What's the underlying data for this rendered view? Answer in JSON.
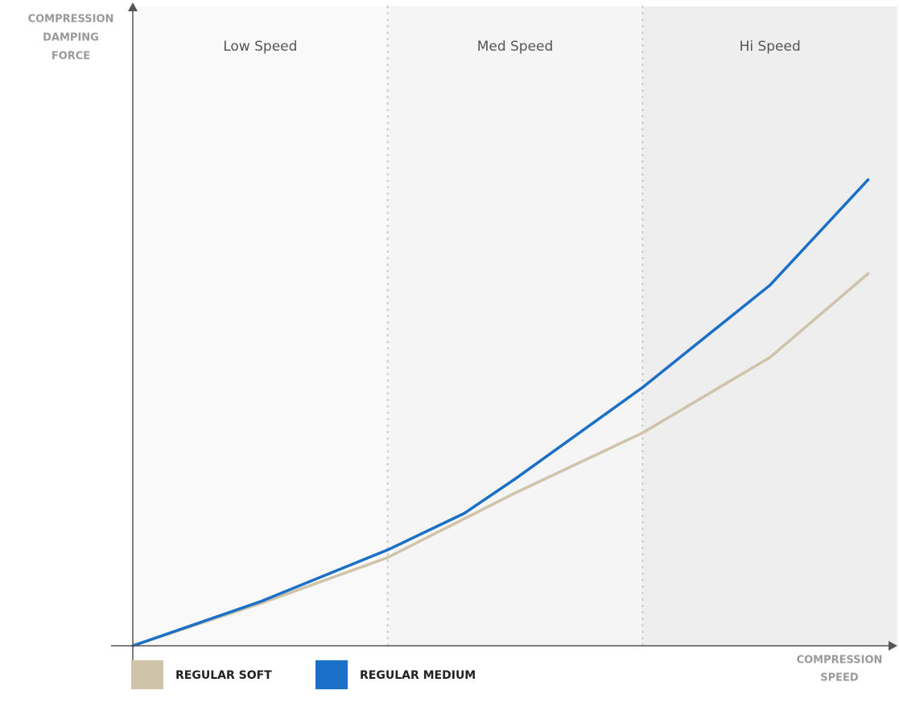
{
  "chart_data": {
    "type": "line",
    "ylabel": [
      "COMPRESSION",
      "DAMPING",
      "FORCE"
    ],
    "xlabel": [
      "COMPRESSION",
      "SPEED"
    ],
    "xlim": [
      0,
      3
    ],
    "ylim": [
      0,
      10
    ],
    "zones": [
      {
        "label": "Low Speed",
        "range": [
          0,
          1
        ],
        "color": "#f9f9f9"
      },
      {
        "label": "Med Speed",
        "range": [
          1,
          2
        ],
        "color": "#f5f5f5"
      },
      {
        "label": "Hi Speed",
        "range": [
          2,
          3
        ],
        "color": "#eeeeee"
      }
    ],
    "series": [
      {
        "name": "REGULAR SOFT",
        "color": "#cfc3aa",
        "x": [
          0,
          0.5,
          1,
          1.5,
          2,
          2.5,
          2.885
        ],
        "values": [
          0,
          0.66,
          1.38,
          2.39,
          3.33,
          4.51,
          5.82
        ]
      },
      {
        "name": "REGULAR MEDIUM",
        "color": "#1a6fc7",
        "x": [
          0,
          0.5,
          1,
          1.3,
          1.5,
          2,
          2.5,
          2.885
        ],
        "values": [
          0,
          0.69,
          1.5,
          2.07,
          2.61,
          4.04,
          5.64,
          7.29
        ]
      }
    ]
  }
}
